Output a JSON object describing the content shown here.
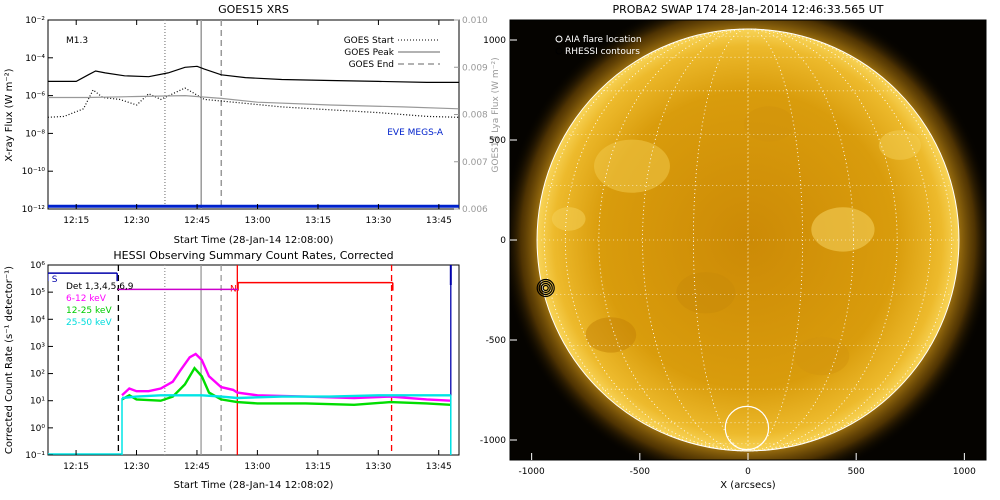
{
  "chart_data": [
    {
      "type": "line",
      "title": "GOES15 XRS",
      "xlabel": "Start Time (28-Jan-14 12:08:00)",
      "ylabel": "X-ray Flux (W m⁻²)",
      "y2label": "GOES15 Lya Flux (W m⁻²)",
      "xlim": [
        12.1333,
        13.8333
      ],
      "ylim_log10": [
        -12,
        -2
      ],
      "y2lim": [
        0.006,
        0.01
      ],
      "x_ticks": [
        {
          "value": 12.25,
          "label": "12:15"
        },
        {
          "value": 12.5,
          "label": "12:30"
        },
        {
          "value": 12.75,
          "label": "12:45"
        },
        {
          "value": 13.0,
          "label": "13:00"
        },
        {
          "value": 13.25,
          "label": "13:15"
        },
        {
          "value": 13.5,
          "label": "13:30"
        },
        {
          "value": 13.75,
          "label": "13:45"
        }
      ],
      "y_ticks": [
        {
          "value": -2,
          "label": "10⁻²"
        },
        {
          "value": -4,
          "label": "10⁻⁴"
        },
        {
          "value": -6,
          "label": "10⁻⁶"
        },
        {
          "value": -8,
          "label": "10⁻⁸"
        },
        {
          "value": -10,
          "label": "10⁻¹⁰"
        },
        {
          "value": -12,
          "label": "10⁻¹²"
        }
      ],
      "y2_ticks": [
        {
          "value": 0.01,
          "label": "0.010"
        },
        {
          "value": 0.009,
          "label": "0.009"
        },
        {
          "value": 0.008,
          "label": "0.008"
        },
        {
          "value": 0.007,
          "label": "0.007"
        },
        {
          "value": 0.006,
          "label": "0.006"
        }
      ],
      "flare_class": "M1.3",
      "legend": {
        "placement": "top-right",
        "entries": [
          {
            "label": "GOES Start",
            "style": "dotted"
          },
          {
            "label": "GOES Peak",
            "style": "solid"
          },
          {
            "label": "GOES End",
            "style": "dashed"
          }
        ]
      },
      "eve_label": "EVE MEGS-A",
      "vlines": {
        "start": 12.617,
        "peak": 12.767,
        "end": 12.85
      },
      "series": [
        {
          "color": "#000000",
          "style": "solid",
          "x": [
            12.133,
            12.25,
            12.3,
            12.33,
            12.37,
            12.45,
            12.55,
            12.63,
            12.7,
            12.75,
            12.78,
            12.85,
            12.95,
            13.1,
            13.3,
            13.5,
            13.7,
            13.833
          ],
          "y": [
            -5.25,
            -5.25,
            -4.9,
            -4.7,
            -4.8,
            -4.95,
            -5.0,
            -4.8,
            -4.5,
            -4.45,
            -4.6,
            -4.9,
            -5.05,
            -5.15,
            -5.2,
            -5.25,
            -5.3,
            -5.3
          ]
        },
        {
          "color": "#000000",
          "style": "dotted",
          "x": [
            12.133,
            12.2,
            12.28,
            12.32,
            12.36,
            12.43,
            12.5,
            12.55,
            12.6,
            12.7,
            12.78,
            12.9,
            13.1,
            13.3,
            13.5,
            13.7,
            13.833
          ],
          "y": [
            -7.15,
            -7.1,
            -6.7,
            -5.7,
            -6.1,
            -6.2,
            -6.5,
            -5.9,
            -6.2,
            -5.6,
            -6.2,
            -6.35,
            -6.6,
            -6.75,
            -6.9,
            -7.1,
            -7.15
          ]
        },
        {
          "color": "#999999",
          "style": "solid",
          "x": [
            12.133,
            12.3,
            12.5,
            12.7,
            12.85,
            13.0,
            13.3,
            13.6,
            13.833
          ],
          "y": [
            -6.1,
            -6.1,
            -6.05,
            -6.0,
            -6.15,
            -6.35,
            -6.5,
            -6.6,
            -6.7
          ]
        },
        {
          "color": "#0022cc",
          "style": "solid",
          "x": [
            12.133,
            13.833
          ],
          "y": [
            -11.85,
            -11.85
          ]
        }
      ]
    },
    {
      "type": "line",
      "title": "HESSI Observing Summary Count Rates, Corrected",
      "xlabel": "Start Time (28-Jan-14 12:08:02)",
      "ylabel": "Corrected Count Rate (s⁻¹ detector⁻¹)",
      "xlim": [
        12.1339,
        13.8339
      ],
      "ylim_log10": [
        -1,
        6
      ],
      "x_ticks": [
        {
          "value": 12.25,
          "label": "12:15"
        },
        {
          "value": 12.5,
          "label": "12:30"
        },
        {
          "value": 12.75,
          "label": "12:45"
        },
        {
          "value": 13.0,
          "label": "13:00"
        },
        {
          "value": 13.25,
          "label": "13:15"
        },
        {
          "value": 13.5,
          "label": "13:30"
        },
        {
          "value": 13.75,
          "label": "13:45"
        }
      ],
      "y_ticks": [
        {
          "value": 6,
          "label": "10⁶"
        },
        {
          "value": 5,
          "label": "10⁵"
        },
        {
          "value": 4,
          "label": "10⁴"
        },
        {
          "value": 3,
          "label": "10³"
        },
        {
          "value": 2,
          "label": "10²"
        },
        {
          "value": 1,
          "label": "10¹"
        },
        {
          "value": 0,
          "label": "10⁰"
        },
        {
          "value": -1,
          "label": "10⁻¹"
        }
      ],
      "detectors_label": "Det 1,3,4,5,6,9",
      "legend": {
        "placement": "top-left",
        "entries": [
          {
            "label": "6-12 keV",
            "color": "#ff00ff"
          },
          {
            "label": "12-25 keV",
            "color": "#00dd00"
          },
          {
            "label": "25-50 keV",
            "color": "#00e5e5"
          }
        ]
      },
      "flags": [
        {
          "label": "S",
          "color": "#0000aa",
          "x": [
            12.133,
            12.42
          ],
          "y": 5.7
        },
        {
          "label": "N",
          "color": "#ff0000",
          "x": [
            12.92,
            13.56
          ],
          "y": 5.35
        }
      ],
      "attenuator_bar": {
        "color": "#cc00cc",
        "x": [
          12.42,
          12.92
        ],
        "y": 5.1
      },
      "vlines": [
        {
          "x": 12.425,
          "color": "#000000",
          "style": "dashed"
        },
        {
          "x": 12.617,
          "color": "#999999",
          "style": "dotted"
        },
        {
          "x": 12.767,
          "color": "#999999",
          "style": "solid"
        },
        {
          "x": 12.85,
          "color": "#999999",
          "style": "dashed"
        },
        {
          "x": 12.917,
          "color": "#ff0000",
          "style": "solid"
        },
        {
          "x": 13.555,
          "color": "#ff0000",
          "style": "dashed"
        },
        {
          "x": 13.8,
          "color": "#0000aa",
          "style": "solid"
        }
      ],
      "series": [
        {
          "name": "6-12 keV",
          "color": "#ff00ff",
          "x": [
            12.44,
            12.47,
            12.5,
            12.55,
            12.6,
            12.65,
            12.68,
            12.72,
            12.745,
            12.77,
            12.8,
            12.85,
            12.9,
            12.917,
            13.0,
            13.2,
            13.4,
            13.55,
            13.7,
            13.8
          ],
          "y": [
            1.2,
            1.45,
            1.35,
            1.35,
            1.45,
            1.7,
            2.1,
            2.6,
            2.72,
            2.5,
            1.9,
            1.5,
            1.4,
            1.3,
            1.2,
            1.15,
            1.1,
            1.15,
            1.05,
            1.0
          ]
        },
        {
          "name": "12-25 keV",
          "color": "#00dd00",
          "x": [
            12.44,
            12.47,
            12.5,
            12.6,
            12.65,
            12.7,
            12.74,
            12.77,
            12.8,
            12.85,
            12.917,
            13.0,
            13.2,
            13.4,
            13.55,
            13.7,
            13.8
          ],
          "y": [
            1.05,
            1.2,
            1.05,
            1.0,
            1.15,
            1.6,
            2.2,
            1.9,
            1.3,
            1.05,
            0.95,
            0.9,
            0.9,
            0.85,
            0.95,
            0.9,
            0.85
          ]
        },
        {
          "name": "25-50 keV",
          "color": "#00e5e5",
          "x": [
            12.44,
            12.5,
            12.6,
            12.7,
            12.77,
            12.85,
            12.917,
            13.1,
            13.3,
            13.5,
            13.7,
            13.8
          ],
          "y": [
            1.1,
            1.15,
            1.2,
            1.2,
            1.2,
            1.15,
            1.1,
            1.15,
            1.15,
            1.2,
            1.2,
            1.2
          ]
        }
      ]
    },
    {
      "type": "heatmap",
      "title": "PROBA2 SWAP 174 28-Jan-2014 12:46:33.565 UT",
      "xlabel": "X (arcsecs)",
      "ylabel": "",
      "xlim": [
        -1100,
        1100
      ],
      "ylim": [
        -1100,
        1100
      ],
      "x_ticks": [
        -1000,
        -500,
        0,
        500,
        1000
      ],
      "y_ticks": [
        1000,
        500,
        0,
        -500,
        -1000
      ],
      "solar_radius_arcsec": 975,
      "legend": {
        "placement": "top-left",
        "entries": [
          {
            "label": "AIA flare location",
            "color": "#ffffff"
          },
          {
            "label": "RHESSI contours",
            "color": "#000000"
          }
        ]
      },
      "aia_flare_location": {
        "x": -5,
        "y": -940,
        "radius": 100
      },
      "rhessi_contour_center": {
        "x": -935,
        "y": -240
      },
      "colors": {
        "disk": "#e3a70f",
        "limb": "#f6cf52",
        "background": "#050300"
      }
    }
  ]
}
